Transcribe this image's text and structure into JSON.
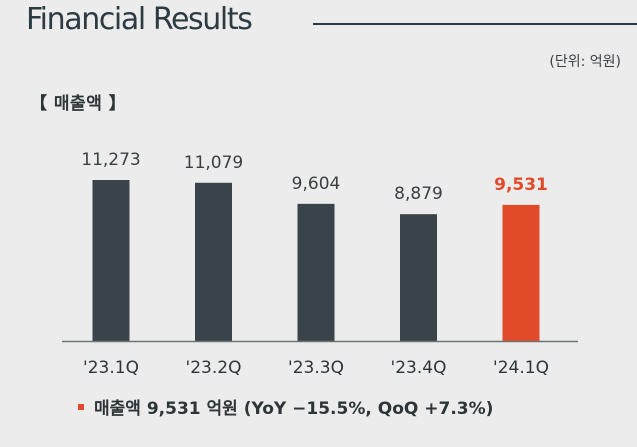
{
  "header": {
    "title": "Financial Results",
    "unit": "(단위: 억원)"
  },
  "section": {
    "label": "【 매출액 】"
  },
  "summary": {
    "text": "매출액 9,531 억원 (YoY −15.5%, QoQ +7.3%)"
  },
  "colors": {
    "bar": "#38444a",
    "highlight": "#e24b2a",
    "label": "#3a3f42",
    "axis": "#2e3539"
  },
  "chart_data": {
    "type": "bar",
    "categories": [
      "'23.1Q",
      "'23.2Q",
      "'23.3Q",
      "'23.4Q",
      "'24.1Q"
    ],
    "values": [
      11273,
      11079,
      9604,
      8879,
      9531
    ],
    "value_labels": [
      "11,273",
      "11,079",
      "9,604",
      "8,879",
      "9,531"
    ],
    "highlight_index": 4,
    "ylim": [
      0,
      11273
    ],
    "title": "",
    "xlabel": "",
    "ylabel": ""
  }
}
